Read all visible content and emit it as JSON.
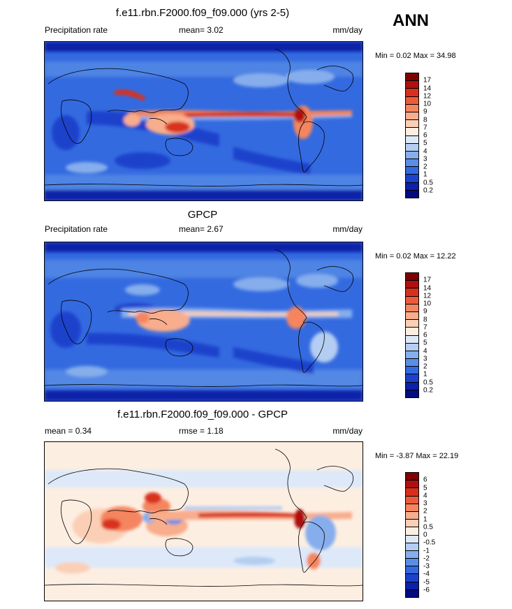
{
  "season": "ANN",
  "units": "mm/day",
  "panels": [
    {
      "title": "f.e11.rbn.F2000.f09_f09.000 (yrs 2-5)",
      "left_label": "Precipitation rate",
      "center_label": "mean=  3.02",
      "right_label": "mm/day",
      "minmax": "Min =   0.02 Max =  34.98"
    },
    {
      "title": "GPCP",
      "left_label": "Precipitation rate",
      "center_label": "mean=  2.67",
      "right_label": "mm/day",
      "minmax": "Min =  0.02 Max =  12.22"
    },
    {
      "title": "f.e11.rbn.F2000.f09_f09.000 - GPCP",
      "left_label": "mean =  0.34",
      "center_label": "rmse =  1.18",
      "right_label": "mm/day",
      "minmax": "Min =  -3.87 Max =  22.19"
    }
  ],
  "colorbars": {
    "precip": {
      "labels": [
        "17",
        "14",
        "12",
        "10",
        "9",
        "8",
        "7",
        "6",
        "5",
        "4",
        "3",
        "2",
        "1",
        "0.5",
        "0.2"
      ],
      "colors": [
        "#800000",
        "#b01010",
        "#d8301c",
        "#ec5c3c",
        "#f4855e",
        "#f8ad8c",
        "#fbcfb5",
        "#fdeee2",
        "#dde9f8",
        "#b4cdf2",
        "#86aeec",
        "#5a8ee6",
        "#346ae0",
        "#1c42cc",
        "#0c20a8",
        "#040a80"
      ]
    },
    "diff": {
      "labels": [
        "6",
        "5",
        "4",
        "3",
        "2",
        "1",
        "0.5",
        "0",
        "-0.5",
        "-1",
        "-2",
        "-3",
        "-4",
        "-5",
        "-6"
      ],
      "colors": [
        "#800000",
        "#b01010",
        "#d8301c",
        "#ec5c3c",
        "#f4855e",
        "#f8ad8c",
        "#fbcfb5",
        "#fdeee2",
        "#dde9f8",
        "#b4cdf2",
        "#86aeec",
        "#5a8ee6",
        "#346ae0",
        "#1c42cc",
        "#0c20a8",
        "#040a80"
      ]
    }
  },
  "chart_data": [
    {
      "type": "heatmap",
      "title": "f.e11.rbn.F2000.f09_f09.000 (yrs 2-5)",
      "field": "Precipitation rate",
      "units": "mm/day",
      "mean": 3.02,
      "min": 0.02,
      "max": 34.98,
      "contour_levels": [
        0.2,
        0.5,
        1,
        2,
        3,
        4,
        5,
        6,
        7,
        8,
        9,
        10,
        12,
        14,
        17
      ]
    },
    {
      "type": "heatmap",
      "title": "GPCP",
      "field": "Precipitation rate",
      "units": "mm/day",
      "mean": 2.67,
      "min": 0.02,
      "max": 12.22,
      "contour_levels": [
        0.2,
        0.5,
        1,
        2,
        3,
        4,
        5,
        6,
        7,
        8,
        9,
        10,
        12,
        14,
        17
      ]
    },
    {
      "type": "heatmap",
      "title": "f.e11.rbn.F2000.f09_f09.000 - GPCP",
      "units": "mm/day",
      "mean": 0.34,
      "rmse": 1.18,
      "min": -3.87,
      "max": 22.19,
      "contour_levels": [
        -6,
        -5,
        -4,
        -3,
        -2,
        -1,
        -0.5,
        0,
        0.5,
        1,
        2,
        3,
        4,
        5,
        6
      ]
    }
  ]
}
